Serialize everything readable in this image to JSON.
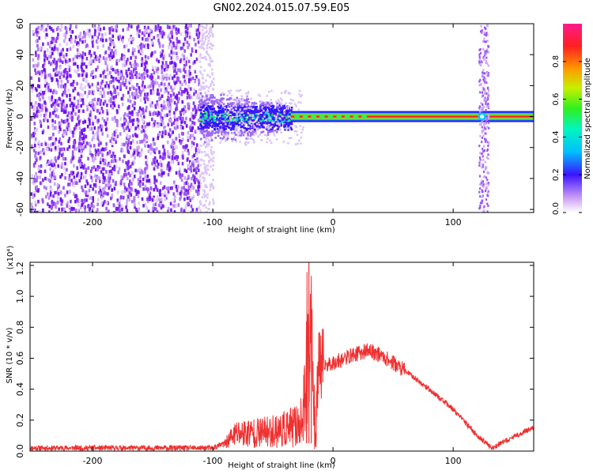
{
  "title": "GN02.2024.015.07.59.E05",
  "colors": {
    "snr_line": "#f03030",
    "spectrogram_noise": "#7a20f0",
    "tone_core": "#ff2020"
  },
  "chart_data": [
    {
      "type": "heatmap",
      "xlabel": "Height of straight line (km)",
      "ylabel": "Frequency (Hz)",
      "xlim": [
        -252,
        167
      ],
      "ylim": [
        -62,
        60
      ],
      "x_ticks": [
        -200,
        -100,
        0,
        100
      ],
      "y_ticks": [
        -60,
        -40,
        -20,
        0,
        20,
        40,
        60
      ],
      "regions": [
        {
          "x": [
            -252,
            -112
          ],
          "freq": [
            -62,
            60
          ],
          "level": 0.15,
          "desc_key": "broadband noise"
        },
        {
          "x": [
            -112,
            -35
          ],
          "freq": [
            -15,
            15
          ],
          "level": 0.3,
          "desc_key": "narrowing noise"
        },
        {
          "x": [
            -35,
            167
          ],
          "freq": [
            -2,
            2
          ],
          "level": 1.0,
          "desc_key": "tone"
        },
        {
          "x": [
            120,
            130
          ],
          "freq": [
            -62,
            60
          ],
          "level": 0.12,
          "desc_key": "vertical stripe"
        }
      ],
      "colorbar": {
        "label": "Normalized spectral amplitude",
        "ticks": [
          0.0,
          0.2,
          0.4,
          0.6,
          0.8
        ],
        "tick_labels": [
          "0.0",
          "0.2",
          "0.4",
          "0.6",
          "0.8"
        ],
        "range": [
          0,
          1
        ]
      }
    },
    {
      "type": "line",
      "xlabel": "Height of straight line (km)",
      "ylabel": "SNR (10 * v/v)",
      "y_multiplier": "(x10⁴)",
      "xlim": [
        -252,
        167
      ],
      "ylim": [
        0,
        1.22
      ],
      "x_ticks": [
        -200,
        -100,
        0,
        100
      ],
      "y_ticks": [
        0.0,
        0.2,
        0.4,
        0.6,
        0.8,
        1.0,
        1.2
      ],
      "y_tick_labels": [
        "0.0",
        "0.2",
        "0.4",
        "0.6",
        "0.8",
        "1.0",
        "1.2"
      ],
      "series": [
        {
          "color": "#f03030",
          "x": [
            -252,
            -200,
            -150,
            -110,
            -100,
            -90,
            -85,
            -80,
            -70,
            -60,
            -50,
            -40,
            -32,
            -26,
            -23,
            -21,
            -20,
            -19,
            -18,
            -15,
            -12,
            -8,
            0,
            10,
            20,
            30,
            40,
            60,
            80,
            100,
            120,
            132,
            140,
            150,
            160,
            167
          ],
          "y": [
            0.02,
            0.02,
            0.02,
            0.02,
            0.02,
            0.05,
            0.12,
            0.17,
            0.18,
            0.18,
            0.2,
            0.22,
            0.25,
            0.3,
            0.55,
            1.22,
            0.4,
            0.8,
            0.93,
            0.05,
            0.55,
            0.55,
            0.57,
            0.6,
            0.63,
            0.65,
            0.62,
            0.52,
            0.4,
            0.27,
            0.1,
            0.02,
            0.05,
            0.09,
            0.13,
            0.15
          ]
        }
      ]
    }
  ]
}
